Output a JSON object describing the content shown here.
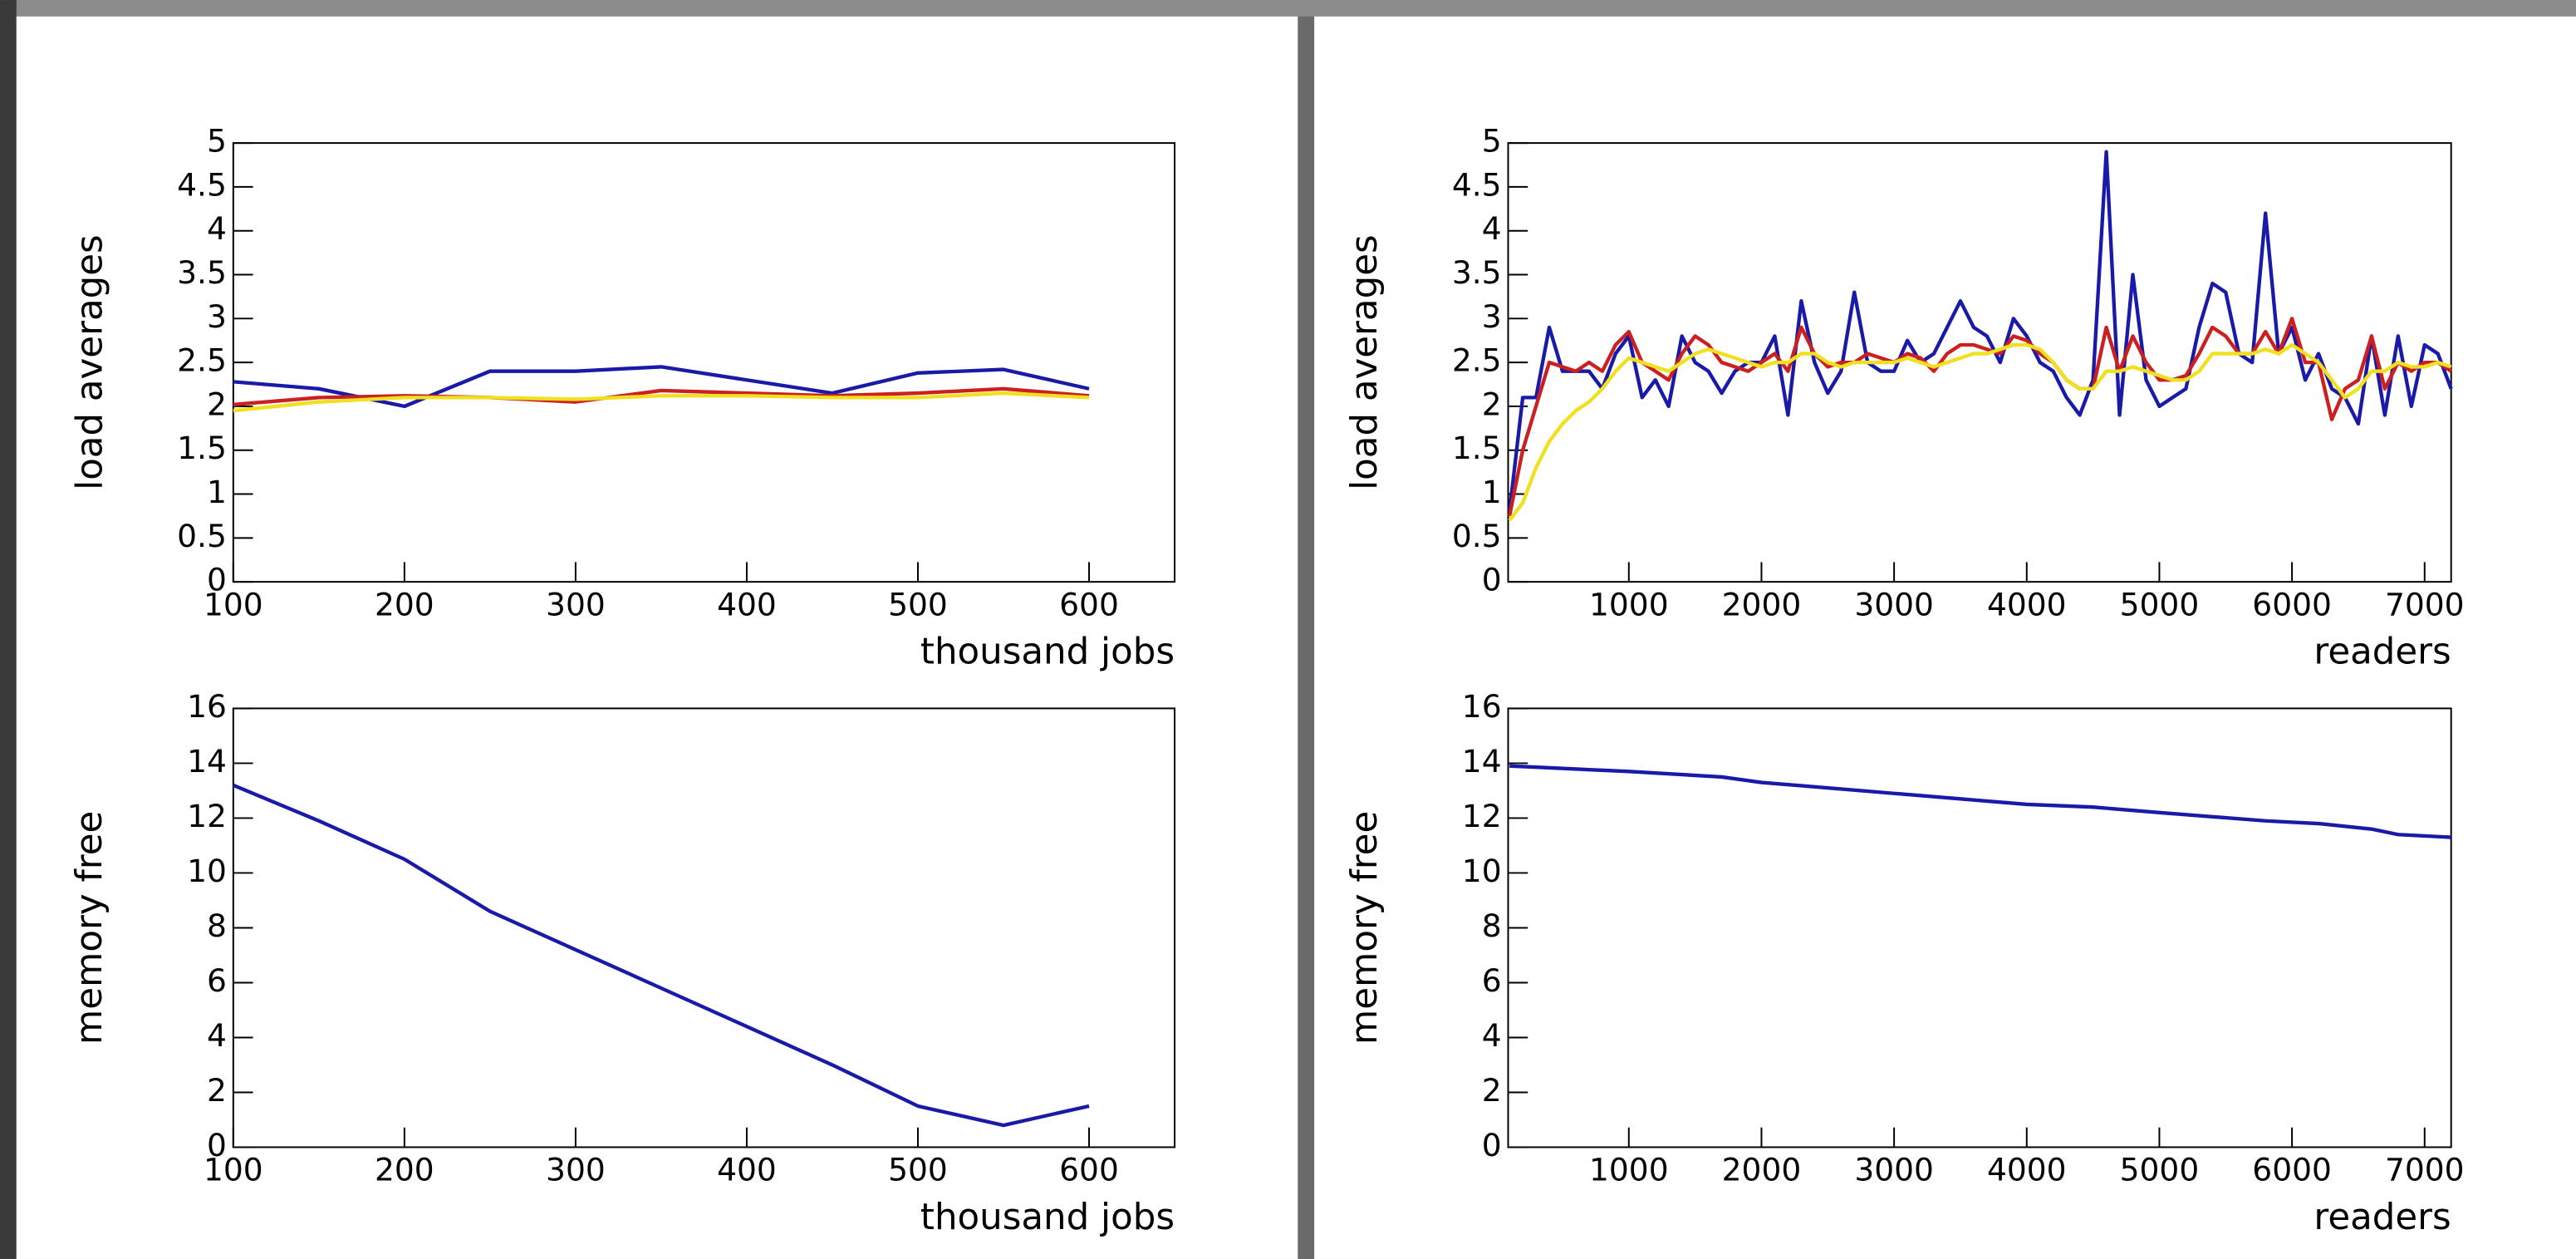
{
  "chart_data": [
    {
      "type": "line",
      "ylabel": "load averages",
      "xlabel": "thousand jobs",
      "x": [
        100,
        150,
        200,
        250,
        300,
        350,
        400,
        450,
        500,
        550,
        600
      ],
      "xlim": [
        100,
        650
      ],
      "xticks": [
        100,
        200,
        300,
        400,
        500,
        600
      ],
      "ylim": [
        0,
        5
      ],
      "yticks": [
        0,
        0.5,
        1,
        1.5,
        2,
        2.5,
        3,
        3.5,
        4,
        4.5,
        5
      ],
      "series": [
        {
          "color": "#1a1aa8",
          "values": [
            2.28,
            2.2,
            2.0,
            2.4,
            2.4,
            2.45,
            2.3,
            2.15,
            2.38,
            2.42,
            2.2
          ]
        },
        {
          "color": "#cc2020",
          "values": [
            2.02,
            2.1,
            2.12,
            2.1,
            2.05,
            2.18,
            2.15,
            2.12,
            2.15,
            2.2,
            2.12
          ]
        },
        {
          "color": "#f0e020",
          "values": [
            1.95,
            2.05,
            2.1,
            2.1,
            2.08,
            2.12,
            2.12,
            2.1,
            2.1,
            2.15,
            2.1
          ]
        }
      ]
    },
    {
      "type": "line",
      "ylabel": "load averages",
      "xlabel": "readers",
      "x": [
        100,
        200,
        300,
        400,
        500,
        600,
        700,
        800,
        900,
        1000,
        1100,
        1200,
        1300,
        1400,
        1500,
        1600,
        1700,
        1800,
        1900,
        2000,
        2100,
        2200,
        2300,
        2400,
        2500,
        2600,
        2700,
        2800,
        2900,
        3000,
        3100,
        3200,
        3300,
        3400,
        3500,
        3600,
        3700,
        3800,
        3900,
        4000,
        4100,
        4200,
        4300,
        4400,
        4500,
        4600,
        4700,
        4800,
        4900,
        5000,
        5100,
        5200,
        5300,
        5400,
        5500,
        5600,
        5700,
        5800,
        5900,
        6000,
        6100,
        6200,
        6300,
        6400,
        6500,
        6600,
        6700,
        6800,
        6900,
        7000,
        7100,
        7200
      ],
      "xlim": [
        90,
        7200
      ],
      "xticks": [
        1000,
        2000,
        3000,
        4000,
        5000,
        6000,
        7000
      ],
      "ylim": [
        0,
        5
      ],
      "yticks": [
        0,
        0.5,
        1,
        1.5,
        2,
        2.5,
        3,
        3.5,
        4,
        4.5,
        5
      ],
      "series": [
        {
          "color": "#1a1aa8",
          "values": [
            0.8,
            2.1,
            2.1,
            2.9,
            2.4,
            2.4,
            2.4,
            2.2,
            2.6,
            2.8,
            2.1,
            2.3,
            2.0,
            2.8,
            2.5,
            2.4,
            2.15,
            2.4,
            2.5,
            2.5,
            2.8,
            1.9,
            3.2,
            2.5,
            2.15,
            2.4,
            3.3,
            2.5,
            2.4,
            2.4,
            2.75,
            2.5,
            2.6,
            2.9,
            3.2,
            2.9,
            2.8,
            2.5,
            3.0,
            2.8,
            2.5,
            2.4,
            2.1,
            1.9,
            2.3,
            4.9,
            1.9,
            3.5,
            2.3,
            2.0,
            2.1,
            2.2,
            2.9,
            3.4,
            3.3,
            2.6,
            2.5,
            4.2,
            2.6,
            2.9,
            2.3,
            2.6,
            2.2,
            2.1,
            1.8,
            2.8,
            1.9,
            2.8,
            2.0,
            2.7,
            2.6,
            2.2
          ]
        },
        {
          "color": "#cc2020",
          "values": [
            0.75,
            1.5,
            2.0,
            2.5,
            2.45,
            2.4,
            2.5,
            2.4,
            2.7,
            2.85,
            2.5,
            2.4,
            2.3,
            2.6,
            2.8,
            2.7,
            2.5,
            2.45,
            2.4,
            2.5,
            2.6,
            2.4,
            2.9,
            2.6,
            2.45,
            2.5,
            2.5,
            2.6,
            2.55,
            2.5,
            2.6,
            2.55,
            2.4,
            2.6,
            2.7,
            2.7,
            2.65,
            2.6,
            2.8,
            2.75,
            2.6,
            2.5,
            2.3,
            2.2,
            2.2,
            2.9,
            2.4,
            2.8,
            2.5,
            2.3,
            2.3,
            2.35,
            2.6,
            2.9,
            2.8,
            2.6,
            2.6,
            2.85,
            2.6,
            3.0,
            2.5,
            2.5,
            1.85,
            2.2,
            2.3,
            2.8,
            2.2,
            2.5,
            2.4,
            2.5,
            2.5,
            2.4
          ]
        },
        {
          "color": "#f0e020",
          "values": [
            0.7,
            0.9,
            1.3,
            1.6,
            1.8,
            1.95,
            2.05,
            2.2,
            2.4,
            2.55,
            2.5,
            2.45,
            2.4,
            2.5,
            2.6,
            2.65,
            2.6,
            2.55,
            2.5,
            2.45,
            2.5,
            2.5,
            2.6,
            2.6,
            2.5,
            2.45,
            2.5,
            2.5,
            2.5,
            2.5,
            2.55,
            2.5,
            2.45,
            2.5,
            2.55,
            2.6,
            2.6,
            2.65,
            2.7,
            2.7,
            2.65,
            2.5,
            2.3,
            2.2,
            2.2,
            2.4,
            2.4,
            2.45,
            2.4,
            2.35,
            2.3,
            2.3,
            2.4,
            2.6,
            2.6,
            2.6,
            2.6,
            2.65,
            2.6,
            2.7,
            2.6,
            2.5,
            2.3,
            2.1,
            2.2,
            2.4,
            2.4,
            2.5,
            2.45,
            2.45,
            2.5,
            2.45
          ]
        }
      ]
    },
    {
      "type": "line",
      "ylabel": "memory free",
      "xlabel": "thousand jobs",
      "x": [
        100,
        150,
        200,
        250,
        300,
        350,
        400,
        450,
        500,
        550,
        600
      ],
      "xlim": [
        100,
        650
      ],
      "xticks": [
        100,
        200,
        300,
        400,
        500,
        600
      ],
      "ylim": [
        0,
        16
      ],
      "yticks": [
        0,
        2,
        4,
        6,
        8,
        10,
        12,
        14,
        16
      ],
      "series": [
        {
          "color": "#1a1aa8",
          "values": [
            13.2,
            11.9,
            10.5,
            8.6,
            7.2,
            5.8,
            4.4,
            3.0,
            1.5,
            0.8,
            1.5
          ]
        }
      ]
    },
    {
      "type": "line",
      "ylabel": "memory free",
      "xlabel": "readers",
      "x": [
        100,
        1000,
        1700,
        2000,
        3000,
        4000,
        4500,
        5000,
        5800,
        6200,
        6600,
        6800,
        7200
      ],
      "xlim": [
        90,
        7200
      ],
      "xticks": [
        1000,
        2000,
        3000,
        4000,
        5000,
        6000,
        7000
      ],
      "ylim": [
        0,
        16
      ],
      "yticks": [
        0,
        2,
        4,
        6,
        8,
        10,
        12,
        14,
        16
      ],
      "series": [
        {
          "color": "#1a1aa8",
          "values": [
            13.9,
            13.7,
            13.5,
            13.3,
            12.9,
            12.5,
            12.4,
            12.2,
            11.9,
            11.8,
            11.6,
            11.4,
            11.3
          ]
        }
      ]
    }
  ]
}
